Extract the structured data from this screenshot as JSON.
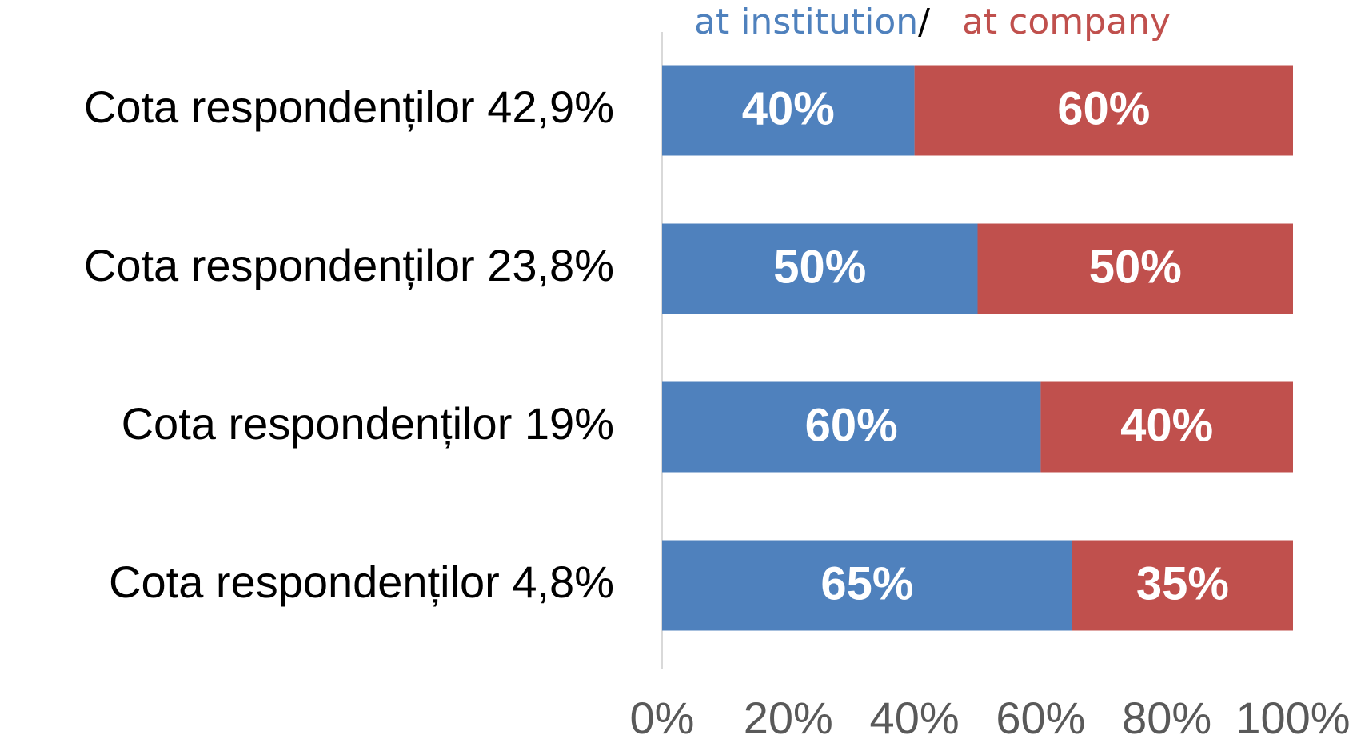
{
  "chart_data": {
    "type": "stacked_bar_horizontal",
    "legend_separator": "/",
    "categories": [
      "Cota respondenților 42,9%",
      "Cota respondenților 23,8%",
      "Cota respondenților 19%",
      "Cota respondenților 4,8%"
    ],
    "series": [
      {
        "name": "at institution",
        "color": "#4f81bd",
        "values": [
          40,
          50,
          60,
          65
        ],
        "value_labels": [
          "40%",
          "50%",
          "60%",
          "65%"
        ]
      },
      {
        "name": "at company",
        "color": "#c0504d",
        "values": [
          60,
          50,
          40,
          35
        ],
        "value_labels": [
          "60%",
          "50%",
          "40%",
          "35%"
        ]
      }
    ],
    "xlim": [
      0,
      100
    ],
    "xticks": [
      {
        "value": 0,
        "label": "0%"
      },
      {
        "value": 20,
        "label": "20%"
      },
      {
        "value": 40,
        "label": "40%"
      },
      {
        "value": 60,
        "label": "60%"
      },
      {
        "value": 80,
        "label": "80%"
      },
      {
        "value": 100,
        "label": "100%"
      }
    ],
    "grid": false,
    "legend": "top"
  }
}
